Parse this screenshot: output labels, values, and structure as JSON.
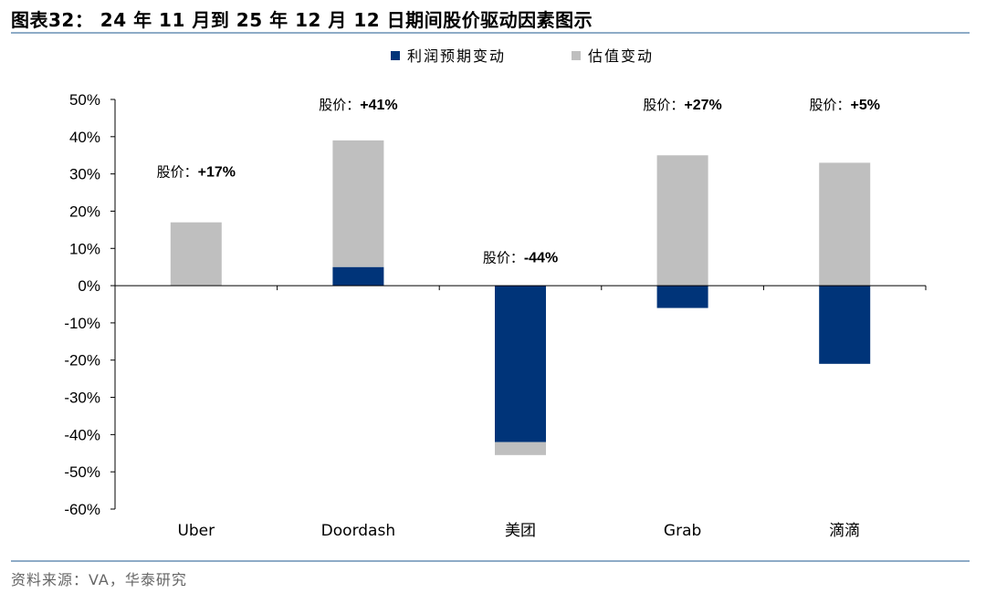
{
  "header": {
    "title": "图表32： 24 年 11 月到 25 年 12 月 12 日期间股价驱动因素图示"
  },
  "footer": {
    "source": "资料来源：VA，华泰研究"
  },
  "colors": {
    "earnings": "#003479",
    "valuation": "#bfbfbf",
    "rule": "#8eabc7"
  },
  "chart_data": {
    "type": "bar",
    "stacked": true,
    "categories": [
      "Uber",
      "Doordash",
      "美团",
      "Grab",
      "滴滴"
    ],
    "series": [
      {
        "name": "利润预期变动",
        "values": [
          0,
          5,
          -42,
          -6,
          -21
        ]
      },
      {
        "name": "估值变动",
        "values": [
          17,
          34,
          -3.5,
          35,
          33
        ]
      }
    ],
    "ylim": [
      -60,
      50
    ],
    "yticks": [
      "50%",
      "40%",
      "30%",
      "20%",
      "10%",
      "0%",
      "-10%",
      "-20%",
      "-30%",
      "-40%",
      "-50%",
      "-60%"
    ],
    "ytick_values": [
      50,
      40,
      30,
      20,
      10,
      0,
      -10,
      -20,
      -30,
      -40,
      -50,
      -60
    ],
    "annotations": [
      {
        "prefix": "股价：",
        "value": "+17%",
        "category": "Uber",
        "level": 31
      },
      {
        "prefix": "股价：",
        "value": "+41%",
        "category": "Doordash",
        "level": 49
      },
      {
        "prefix": "股价：",
        "value": "-44%",
        "category": "美团",
        "level": 8
      },
      {
        "prefix": "股价：",
        "value": "+27%",
        "category": "Grab",
        "level": 49
      },
      {
        "prefix": "股价：",
        "value": "+5%",
        "category": "滴滴",
        "level": 49
      }
    ],
    "legend_position": "top-center",
    "grid": false
  }
}
